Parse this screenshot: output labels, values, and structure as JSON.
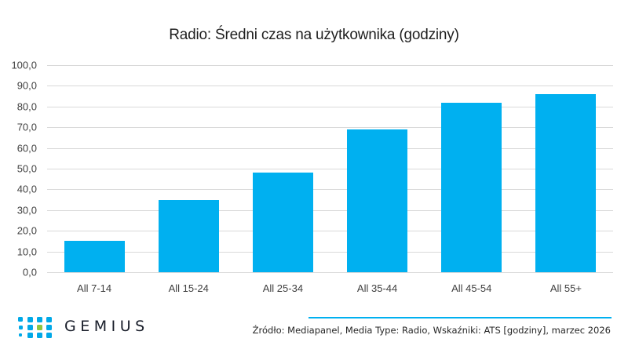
{
  "title": "Radio: Średni czas na użytkownika (godziny)",
  "chart_data": {
    "type": "bar",
    "title": "Radio: Średni czas na użytkownika (godziny)",
    "categories": [
      "All 7-14",
      "All 15-24",
      "All 25-34",
      "All 35-44",
      "All 45-54",
      "All 55+"
    ],
    "values": [
      15.2,
      35.0,
      48.0,
      69.0,
      82.0,
      86.0
    ],
    "xlabel": "",
    "ylabel": "",
    "ylim": [
      0,
      100
    ],
    "yticks": [
      "0,0",
      "10,0",
      "20,0",
      "30,0",
      "40,0",
      "50,0",
      "60,0",
      "70,0",
      "80,0",
      "90,0",
      "100,0"
    ],
    "grid": true,
    "legend": null,
    "bar_color": "#00b0f0"
  },
  "footer": {
    "logo_text": "GEMIUS",
    "source": "Źródło: Mediapanel, Media Type: Radio, Wskaźniki: ATS [godziny], marzec 2026"
  },
  "colors": {
    "bar": "#00b0f0",
    "gridline": "#d9d9d9",
    "logo_dot": "#00a9e8",
    "logo_dot_accent": "#8dc63f",
    "logo_text": "#1a1f2b"
  }
}
